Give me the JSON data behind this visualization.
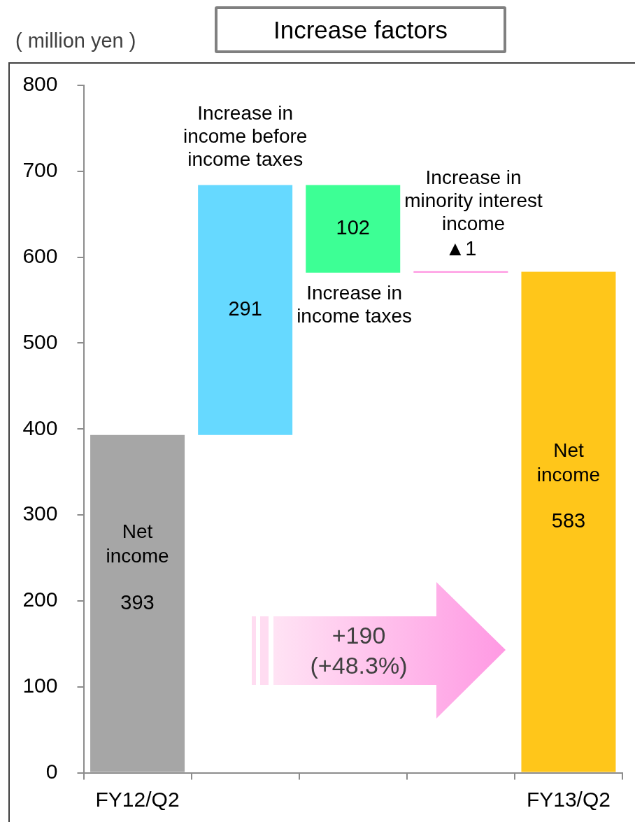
{
  "chart_data": {
    "type": "bar",
    "title": "Increase factors",
    "ylabel": "( million yen )",
    "categories": [
      "FY12/Q2",
      null,
      null,
      null,
      "FY13/Q2"
    ],
    "values": [
      393,
      291,
      102,
      -1,
      583
    ],
    "base": [
      0,
      393,
      582,
      583,
      0
    ],
    "colors": [
      "#a6a6a6",
      "#66d9ff",
      "#3dff95",
      "#ff88dd",
      "#ffc61a"
    ],
    "value_labels": [
      "393",
      "291",
      "102",
      "▲1",
      "583"
    ],
    "ylim": [
      0,
      800
    ],
    "yticks": [
      0,
      100,
      200,
      300,
      400,
      500,
      600,
      700,
      800
    ],
    "annotations": [
      "Net income",
      {
        "text": "Increase in income before income taxes",
        "y": 684
      },
      {
        "text": "Increase in income taxes",
        "y": 582
      },
      {
        "text": "Increase in minority interest income",
        "y": 583
      },
      "Net income",
      "+190 (+48.3%)"
    ]
  }
}
